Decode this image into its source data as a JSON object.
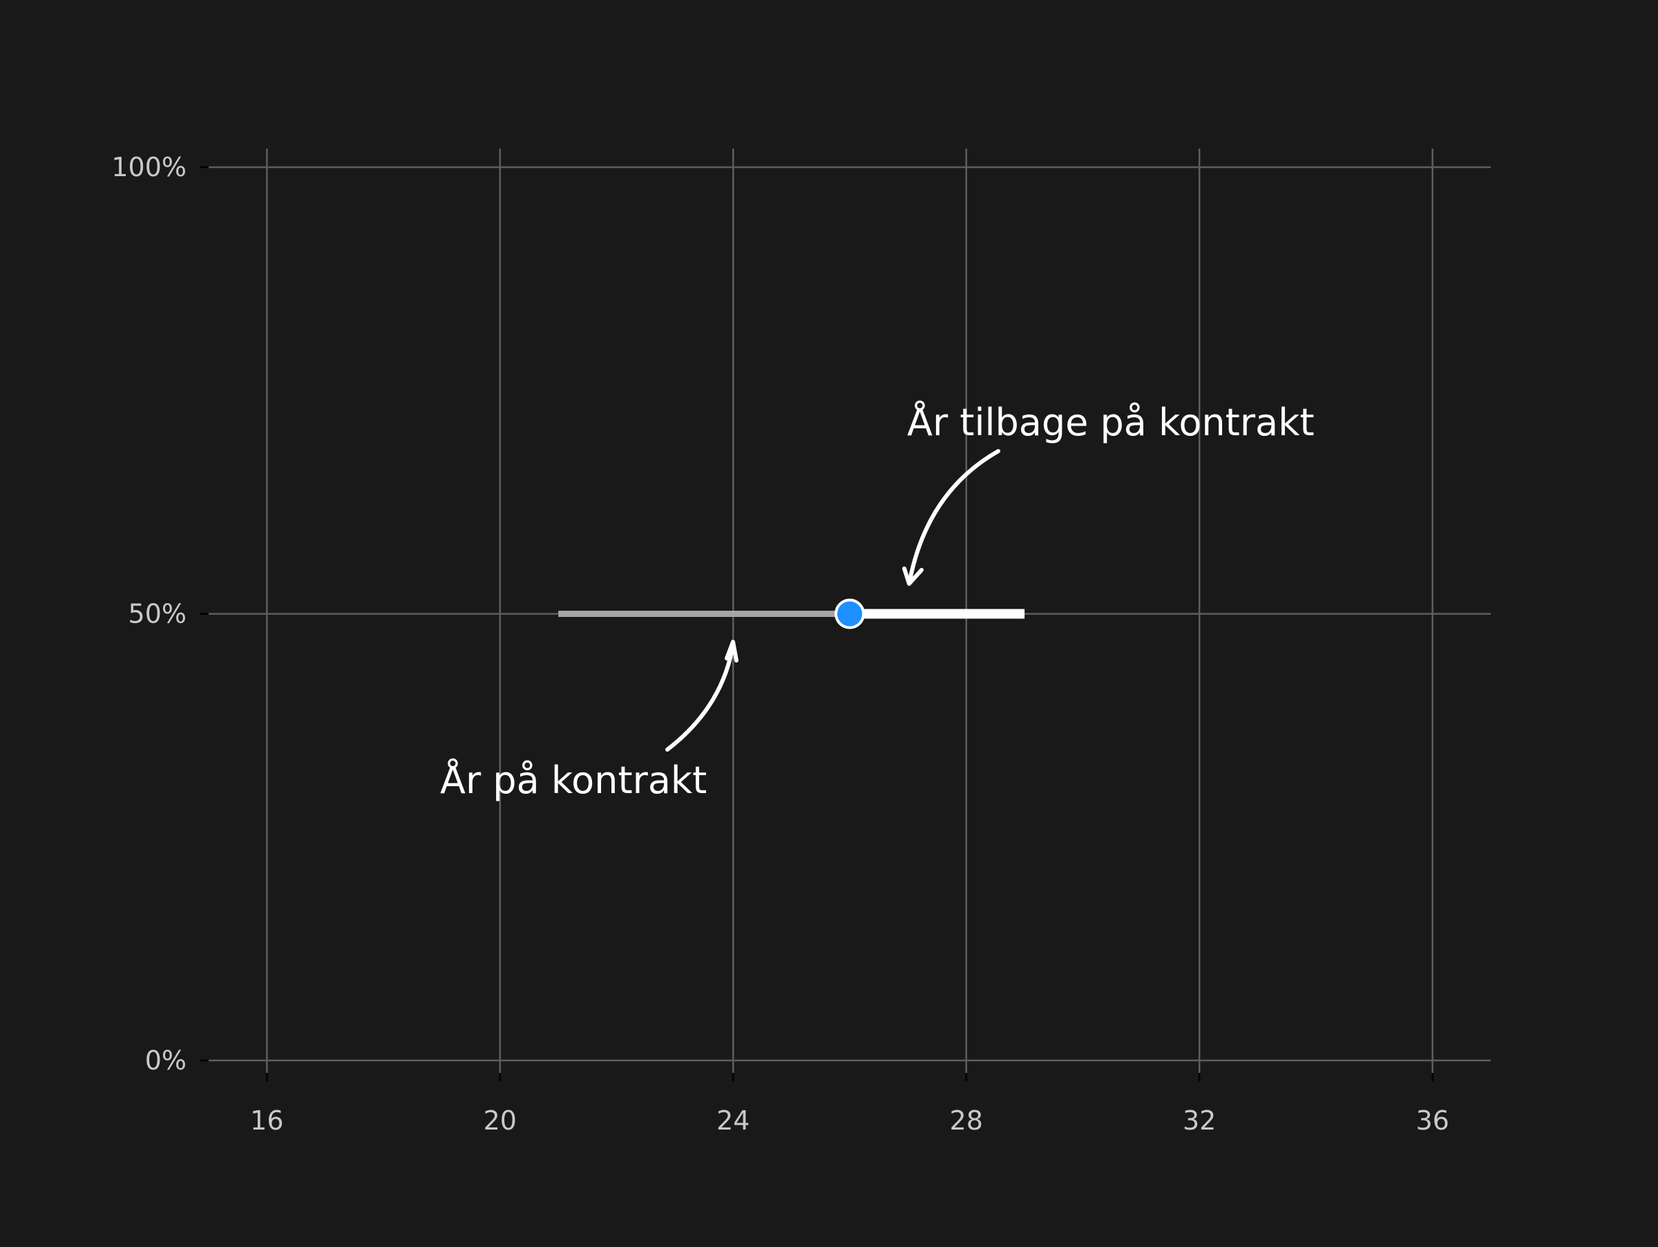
{
  "chart_data": {
    "type": "line",
    "title": "",
    "xlabel": "",
    "ylabel": "",
    "xlim": [
      15,
      37
    ],
    "ylim": [
      0,
      1
    ],
    "x_ticks": [
      16,
      20,
      24,
      28,
      32,
      36
    ],
    "x_tick_labels": [
      "16",
      "20",
      "24",
      "28",
      "32",
      "36"
    ],
    "y_ticks": [
      0,
      0.5,
      1
    ],
    "y_tick_labels": [
      "0%",
      "50%",
      "100%"
    ],
    "grid": true,
    "series": [
      {
        "role": "years-on-contract",
        "x": [
          21,
          26
        ],
        "y": [
          0.5,
          0.5
        ],
        "color": "#a6a6a6"
      },
      {
        "role": "years-remaining",
        "x": [
          26,
          29
        ],
        "y": [
          0.5,
          0.5
        ],
        "color": "#ffffff"
      }
    ],
    "point": {
      "x": 26,
      "y": 0.5,
      "color": "#1e90ff"
    },
    "annotations": [
      {
        "text": "År tilbage på kontrakt",
        "target": {
          "x": 27,
          "y": 0.535
        }
      },
      {
        "text": "År på kontrakt",
        "target": {
          "x": 24,
          "y": 0.47
        }
      }
    ],
    "colors": {
      "background": "#191919",
      "grid": "#5e5e5e",
      "tick_label": "#c9c9c9",
      "annotation": "#ffffff",
      "point_edge": "#ffffff"
    }
  }
}
